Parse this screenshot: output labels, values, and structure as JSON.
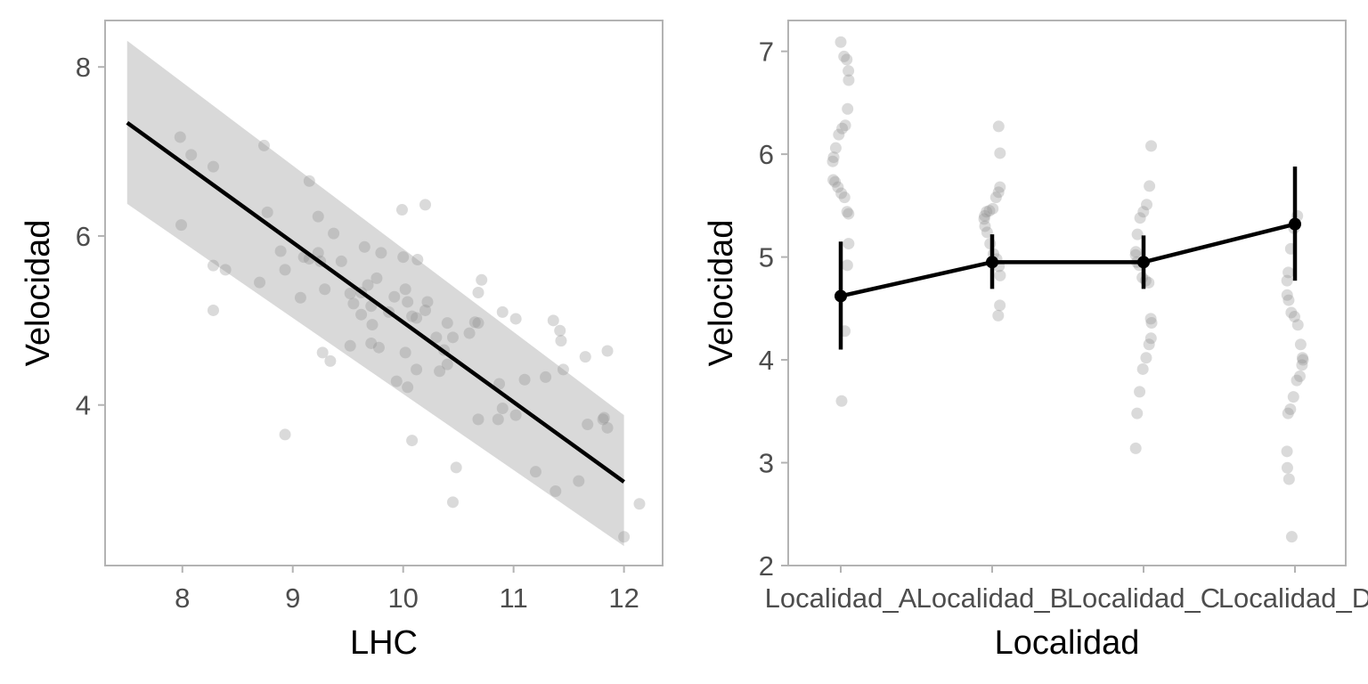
{
  "chart_data": [
    {
      "type": "scatter",
      "xlabel": "LHC",
      "ylabel": "Velocidad",
      "xlim": [
        7.3,
        12.35
      ],
      "ylim": [
        2.1,
        8.55
      ],
      "xticks": [
        8,
        9,
        10,
        11,
        12
      ],
      "yticks": [
        4,
        6,
        8
      ],
      "grid": false,
      "points": [
        [
          7.98,
          7.17
        ],
        [
          8.08,
          6.96
        ],
        [
          8.28,
          6.82
        ],
        [
          7.99,
          6.13
        ],
        [
          8.28,
          5.65
        ],
        [
          8.39,
          5.6
        ],
        [
          8.28,
          5.12
        ],
        [
          8.74,
          7.07
        ],
        [
          8.77,
          6.28
        ],
        [
          8.7,
          5.45
        ],
        [
          8.89,
          5.82
        ],
        [
          8.93,
          5.6
        ],
        [
          8.93,
          3.65
        ],
        [
          9.07,
          5.27
        ],
        [
          9.1,
          5.75
        ],
        [
          9.15,
          6.65
        ],
        [
          9.15,
          5.73
        ],
        [
          9.23,
          6.23
        ],
        [
          9.23,
          5.8
        ],
        [
          9.25,
          5.7
        ],
        [
          9.29,
          5.37
        ],
        [
          9.27,
          4.62
        ],
        [
          9.34,
          4.52
        ],
        [
          9.37,
          6.03
        ],
        [
          9.44,
          5.7
        ],
        [
          9.52,
          5.32
        ],
        [
          9.55,
          5.2
        ],
        [
          9.52,
          4.7
        ],
        [
          9.62,
          5.07
        ],
        [
          9.62,
          5.33
        ],
        [
          9.65,
          5.87
        ],
        [
          9.68,
          5.42
        ],
        [
          9.71,
          5.17
        ],
        [
          9.72,
          4.95
        ],
        [
          9.71,
          4.73
        ],
        [
          9.76,
          5.5
        ],
        [
          9.78,
          4.68
        ],
        [
          9.8,
          5.8
        ],
        [
          9.87,
          5.1
        ],
        [
          9.92,
          5.28
        ],
        [
          9.94,
          4.28
        ],
        [
          9.99,
          6.31
        ],
        [
          10.0,
          5.75
        ],
        [
          10.02,
          4.62
        ],
        [
          10.02,
          5.37
        ],
        [
          10.04,
          5.22
        ],
        [
          10.04,
          4.21
        ],
        [
          10.08,
          5.05
        ],
        [
          10.08,
          3.58
        ],
        [
          10.12,
          4.42
        ],
        [
          10.12,
          5.03
        ],
        [
          10.13,
          5.72
        ],
        [
          10.2,
          5.12
        ],
        [
          10.2,
          6.37
        ],
        [
          10.22,
          5.22
        ],
        [
          10.3,
          4.8
        ],
        [
          10.33,
          4.4
        ],
        [
          10.37,
          4.65
        ],
        [
          10.4,
          4.48
        ],
        [
          10.4,
          4.97
        ],
        [
          10.45,
          4.8
        ],
        [
          10.45,
          2.85
        ],
        [
          10.48,
          3.26
        ],
        [
          10.6,
          4.85
        ],
        [
          10.65,
          4.98
        ],
        [
          10.68,
          5.33
        ],
        [
          10.68,
          4.97
        ],
        [
          10.71,
          5.48
        ],
        [
          10.68,
          3.83
        ],
        [
          10.86,
          3.83
        ],
        [
          10.87,
          4.25
        ],
        [
          10.9,
          3.96
        ],
        [
          10.9,
          5.1
        ],
        [
          11.02,
          5.02
        ],
        [
          11.02,
          3.88
        ],
        [
          11.1,
          4.3
        ],
        [
          11.2,
          3.21
        ],
        [
          11.29,
          4.33
        ],
        [
          11.36,
          5.0
        ],
        [
          11.38,
          2.98
        ],
        [
          11.42,
          4.88
        ],
        [
          11.43,
          4.76
        ],
        [
          11.45,
          4.42
        ],
        [
          11.59,
          3.1
        ],
        [
          11.65,
          4.57
        ],
        [
          11.67,
          3.77
        ],
        [
          11.81,
          3.83
        ],
        [
          11.82,
          3.85
        ],
        [
          11.85,
          4.64
        ],
        [
          11.85,
          3.73
        ],
        [
          12.0,
          2.44
        ],
        [
          12.14,
          2.83
        ]
      ],
      "fit": {
        "x": [
          7.5,
          12.0
        ],
        "y": [
          7.34,
          3.09
        ],
        "ci_upper": [
          8.31,
          3.88
        ],
        "ci_lower": [
          6.38,
          2.33
        ]
      }
    },
    {
      "type": "line",
      "xlabel": "Localidad",
      "ylabel": "Velocidad",
      "categories": [
        "Localidad_A",
        "Localidad_B",
        "Localidad_C",
        "Localidad_D"
      ],
      "ylim": [
        2,
        7.3
      ],
      "yticks": [
        2,
        3,
        4,
        5,
        6,
        7
      ],
      "grid": false,
      "means": [
        4.62,
        4.95,
        4.95,
        5.32
      ],
      "error_lower": [
        4.1,
        4.69,
        4.69,
        4.77
      ],
      "error_upper": [
        5.15,
        5.22,
        5.21,
        5.88
      ],
      "points": {
        "Localidad_A": [
          7.09,
          6.95,
          6.92,
          6.81,
          6.72,
          6.44,
          6.28,
          6.25,
          6.19,
          6.06,
          5.97,
          5.93,
          5.75,
          5.73,
          5.68,
          5.62,
          5.58,
          5.44,
          5.42,
          5.13,
          4.92,
          4.28,
          3.6
        ],
        "Localidad_B": [
          6.27,
          6.01,
          5.68,
          5.63,
          5.58,
          5.47,
          5.45,
          5.44,
          5.4,
          5.37,
          5.3,
          5.24,
          5.13,
          5.03,
          4.98,
          4.91,
          4.82,
          4.53,
          4.43
        ],
        "Localidad_C": [
          6.08,
          5.69,
          5.51,
          5.44,
          5.38,
          5.22,
          5.05,
          5.02,
          4.95,
          4.92,
          4.8,
          4.77,
          4.75,
          4.4,
          4.36,
          4.21,
          4.15,
          4.02,
          3.91,
          3.69,
          3.48,
          3.14
        ],
        "Localidad_D": [
          5.4,
          5.28,
          5.08,
          4.85,
          4.77,
          4.63,
          4.58,
          4.46,
          4.42,
          4.34,
          4.15,
          4.02,
          4.0,
          3.95,
          3.84,
          3.8,
          3.64,
          3.52,
          3.48,
          3.11,
          2.95,
          2.84,
          2.28
        ]
      }
    }
  ]
}
